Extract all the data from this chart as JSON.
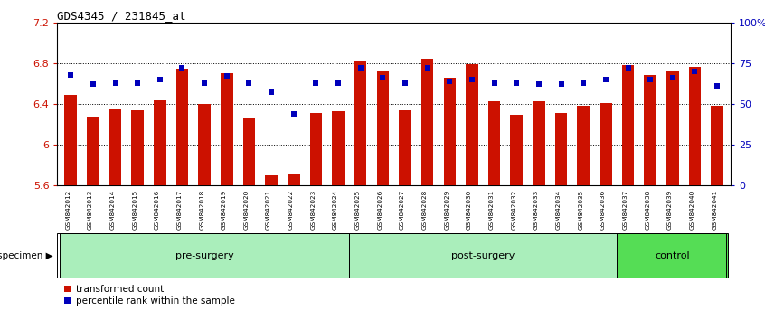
{
  "title": "GDS4345 / 231845_at",
  "samples": [
    "GSM842012",
    "GSM842013",
    "GSM842014",
    "GSM842015",
    "GSM842016",
    "GSM842017",
    "GSM842018",
    "GSM842019",
    "GSM842020",
    "GSM842021",
    "GSM842022",
    "GSM842023",
    "GSM842024",
    "GSM842025",
    "GSM842026",
    "GSM842027",
    "GSM842028",
    "GSM842029",
    "GSM842030",
    "GSM842031",
    "GSM842032",
    "GSM842033",
    "GSM842034",
    "GSM842035",
    "GSM842036",
    "GSM842037",
    "GSM842038",
    "GSM842039",
    "GSM842040",
    "GSM842041"
  ],
  "bar_values": [
    6.49,
    6.28,
    6.35,
    6.34,
    6.44,
    6.75,
    6.4,
    6.7,
    6.26,
    5.7,
    5.72,
    6.31,
    6.33,
    6.83,
    6.73,
    6.34,
    6.84,
    6.66,
    6.79,
    6.43,
    6.29,
    6.43,
    6.31,
    6.38,
    6.41,
    6.78,
    6.68,
    6.73,
    6.76,
    6.38
  ],
  "dot_percents": [
    68,
    62,
    63,
    63,
    65,
    72,
    63,
    67,
    63,
    57,
    44,
    63,
    63,
    72,
    66,
    63,
    72,
    64,
    65,
    63,
    63,
    62,
    62,
    63,
    65,
    72,
    65,
    66,
    70,
    61
  ],
  "ymin": 5.6,
  "ymax": 7.2,
  "yticks_left": [
    5.6,
    6.0,
    6.4,
    6.8,
    7.2
  ],
  "ytick_labels_left": [
    "5.6",
    "6",
    "6.4",
    "6.8",
    "7.2"
  ],
  "yticks_right_pct": [
    0,
    25,
    50,
    75,
    100
  ],
  "ytick_labels_right": [
    "0",
    "25",
    "50",
    "75",
    "100%"
  ],
  "bar_color": "#cc1100",
  "dot_color": "#0000bb",
  "bar_width": 0.55,
  "group_pre_color": "#aaeebb",
  "group_post_color": "#aaeebb",
  "group_control_color": "#55dd55",
  "groups": [
    {
      "label": "pre-surgery",
      "start": 0,
      "end": 13
    },
    {
      "label": "post-surgery",
      "start": 13,
      "end": 25
    },
    {
      "label": "control",
      "start": 25,
      "end": 30
    }
  ],
  "specimen_label": "specimen",
  "legend_bar_label": "transformed count",
  "legend_dot_label": "percentile rank within the sample",
  "xtick_bg_color": "#c8c8c8"
}
